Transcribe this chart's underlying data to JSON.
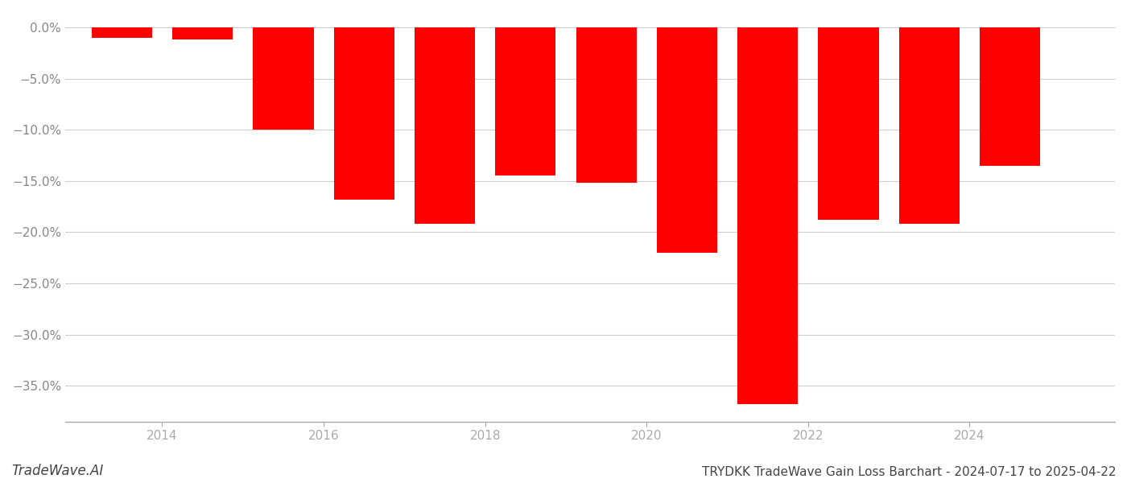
{
  "bar_centers": [
    2013.5,
    2014.5,
    2015.5,
    2016.5,
    2017.5,
    2018.5,
    2019.5,
    2020.5,
    2021.5,
    2022.5,
    2023.5,
    2024.5
  ],
  "values": [
    -1.0,
    -1.2,
    -10.0,
    -16.8,
    -19.2,
    -14.5,
    -15.2,
    -22.0,
    -36.8,
    -18.8,
    -19.2,
    -13.5
  ],
  "bar_color": "#ff0000",
  "background_color": "#ffffff",
  "grid_color": "#cccccc",
  "axis_color": "#aaaaaa",
  "ylim_min": -38.5,
  "ylim_max": 1.5,
  "yticks": [
    0.0,
    -5.0,
    -10.0,
    -15.0,
    -20.0,
    -25.0,
    -30.0,
    -35.0
  ],
  "xtick_positions": [
    2014,
    2016,
    2018,
    2020,
    2022,
    2024
  ],
  "xtick_labels": [
    "2014",
    "2016",
    "2018",
    "2020",
    "2022",
    "2024"
  ],
  "xlabel_color": "#aaaaaa",
  "ylabel_color": "#888888",
  "title": "TRYDKK TradeWave Gain Loss Barchart - 2024-07-17 to 2025-04-22",
  "watermark": "TradeWave.AI",
  "title_fontsize": 11,
  "tick_fontsize": 11,
  "watermark_fontsize": 12,
  "bar_width": 0.75,
  "xlim_min": 2012.8,
  "xlim_max": 2025.8
}
